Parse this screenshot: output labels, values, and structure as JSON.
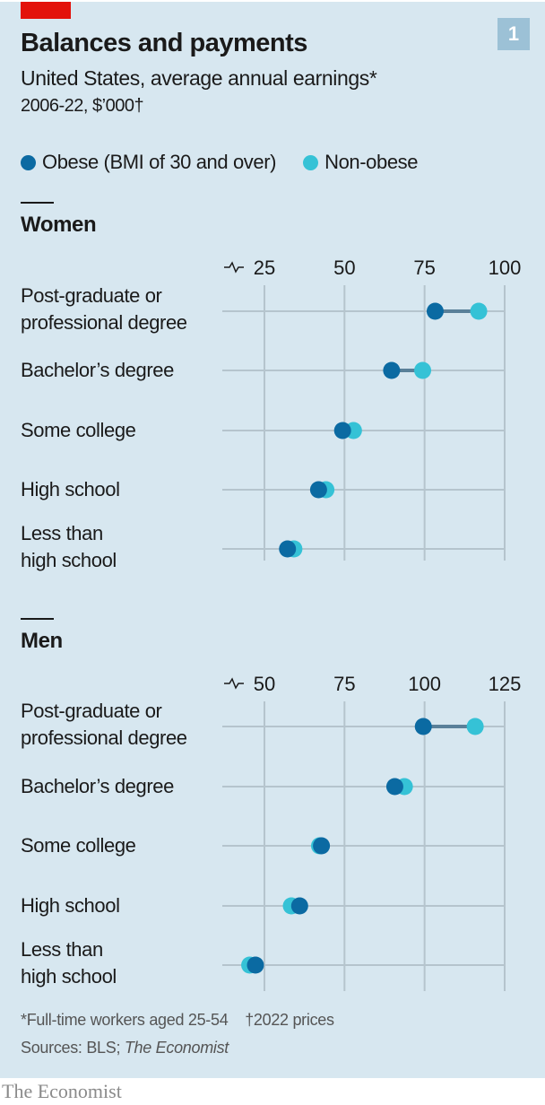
{
  "header": {
    "badge": "1",
    "title": "Balances and payments",
    "subtitle": "United States, average annual earnings*",
    "subtitle2": "2006-22, $’000†"
  },
  "legend": [
    {
      "label": "Obese (BMI of 30 and over)",
      "color": "#0b6aa2"
    },
    {
      "label": "Non-obese",
      "color": "#35c2d6"
    }
  ],
  "chart_data": [
    {
      "type": "dot",
      "title": "Women",
      "xlim": [
        15,
        100
      ],
      "axis_break": true,
      "ticks": [
        "25",
        "50",
        "75",
        "100"
      ],
      "tick_values": [
        25,
        50,
        75,
        100
      ],
      "categories": [
        "Post-graduate or professional degree",
        "Bachelor’s degree",
        "Some college",
        "High school",
        "Less than high school"
      ],
      "category_lines": [
        [
          "Post-graduate or",
          "professional degree"
        ],
        [
          "Bachelor’s degree"
        ],
        [
          "Some college"
        ],
        [
          "High school"
        ],
        [
          "Less than",
          "high school"
        ]
      ],
      "series": [
        {
          "name": "Obese",
          "values": [
            78.3,
            64.7,
            49.4,
            41.9,
            32.2
          ]
        },
        {
          "name": "Non-obese",
          "values": [
            91.9,
            74.4,
            52.8,
            44.2,
            34.2
          ]
        }
      ]
    },
    {
      "type": "dot",
      "title": "Men",
      "xlim": [
        40,
        125
      ],
      "axis_break": true,
      "ticks": [
        "50",
        "75",
        "100",
        "125"
      ],
      "tick_values": [
        50,
        75,
        100,
        125
      ],
      "categories": [
        "Post-graduate or professional degree",
        "Bachelor’s degree",
        "Some college",
        "High school",
        "Less than high school"
      ],
      "category_lines": [
        [
          "Post-graduate or",
          "professional degree"
        ],
        [
          "Bachelor’s degree"
        ],
        [
          "Some college"
        ],
        [
          "High school"
        ],
        [
          "Less than",
          "high school"
        ]
      ],
      "series": [
        {
          "name": "Obese",
          "values": [
            99.6,
            90.7,
            67.8,
            61.0,
            47.2
          ]
        },
        {
          "name": "Non-obese",
          "values": [
            115.8,
            93.7,
            67.2,
            58.4,
            45.4
          ]
        }
      ]
    }
  ],
  "footnotes": {
    "note1": "*Full-time workers aged 25-54",
    "note2": "†2022 prices",
    "sources_prefix": "Sources: BLS; ",
    "sources_italic": "The Economist"
  },
  "brand": "The Economist",
  "colors": {
    "obese": "#0b6aa2",
    "non_obese": "#35c2d6",
    "connector": "#5a8099",
    "grid": "#b5c4cd",
    "background": "#d7e7f0"
  }
}
